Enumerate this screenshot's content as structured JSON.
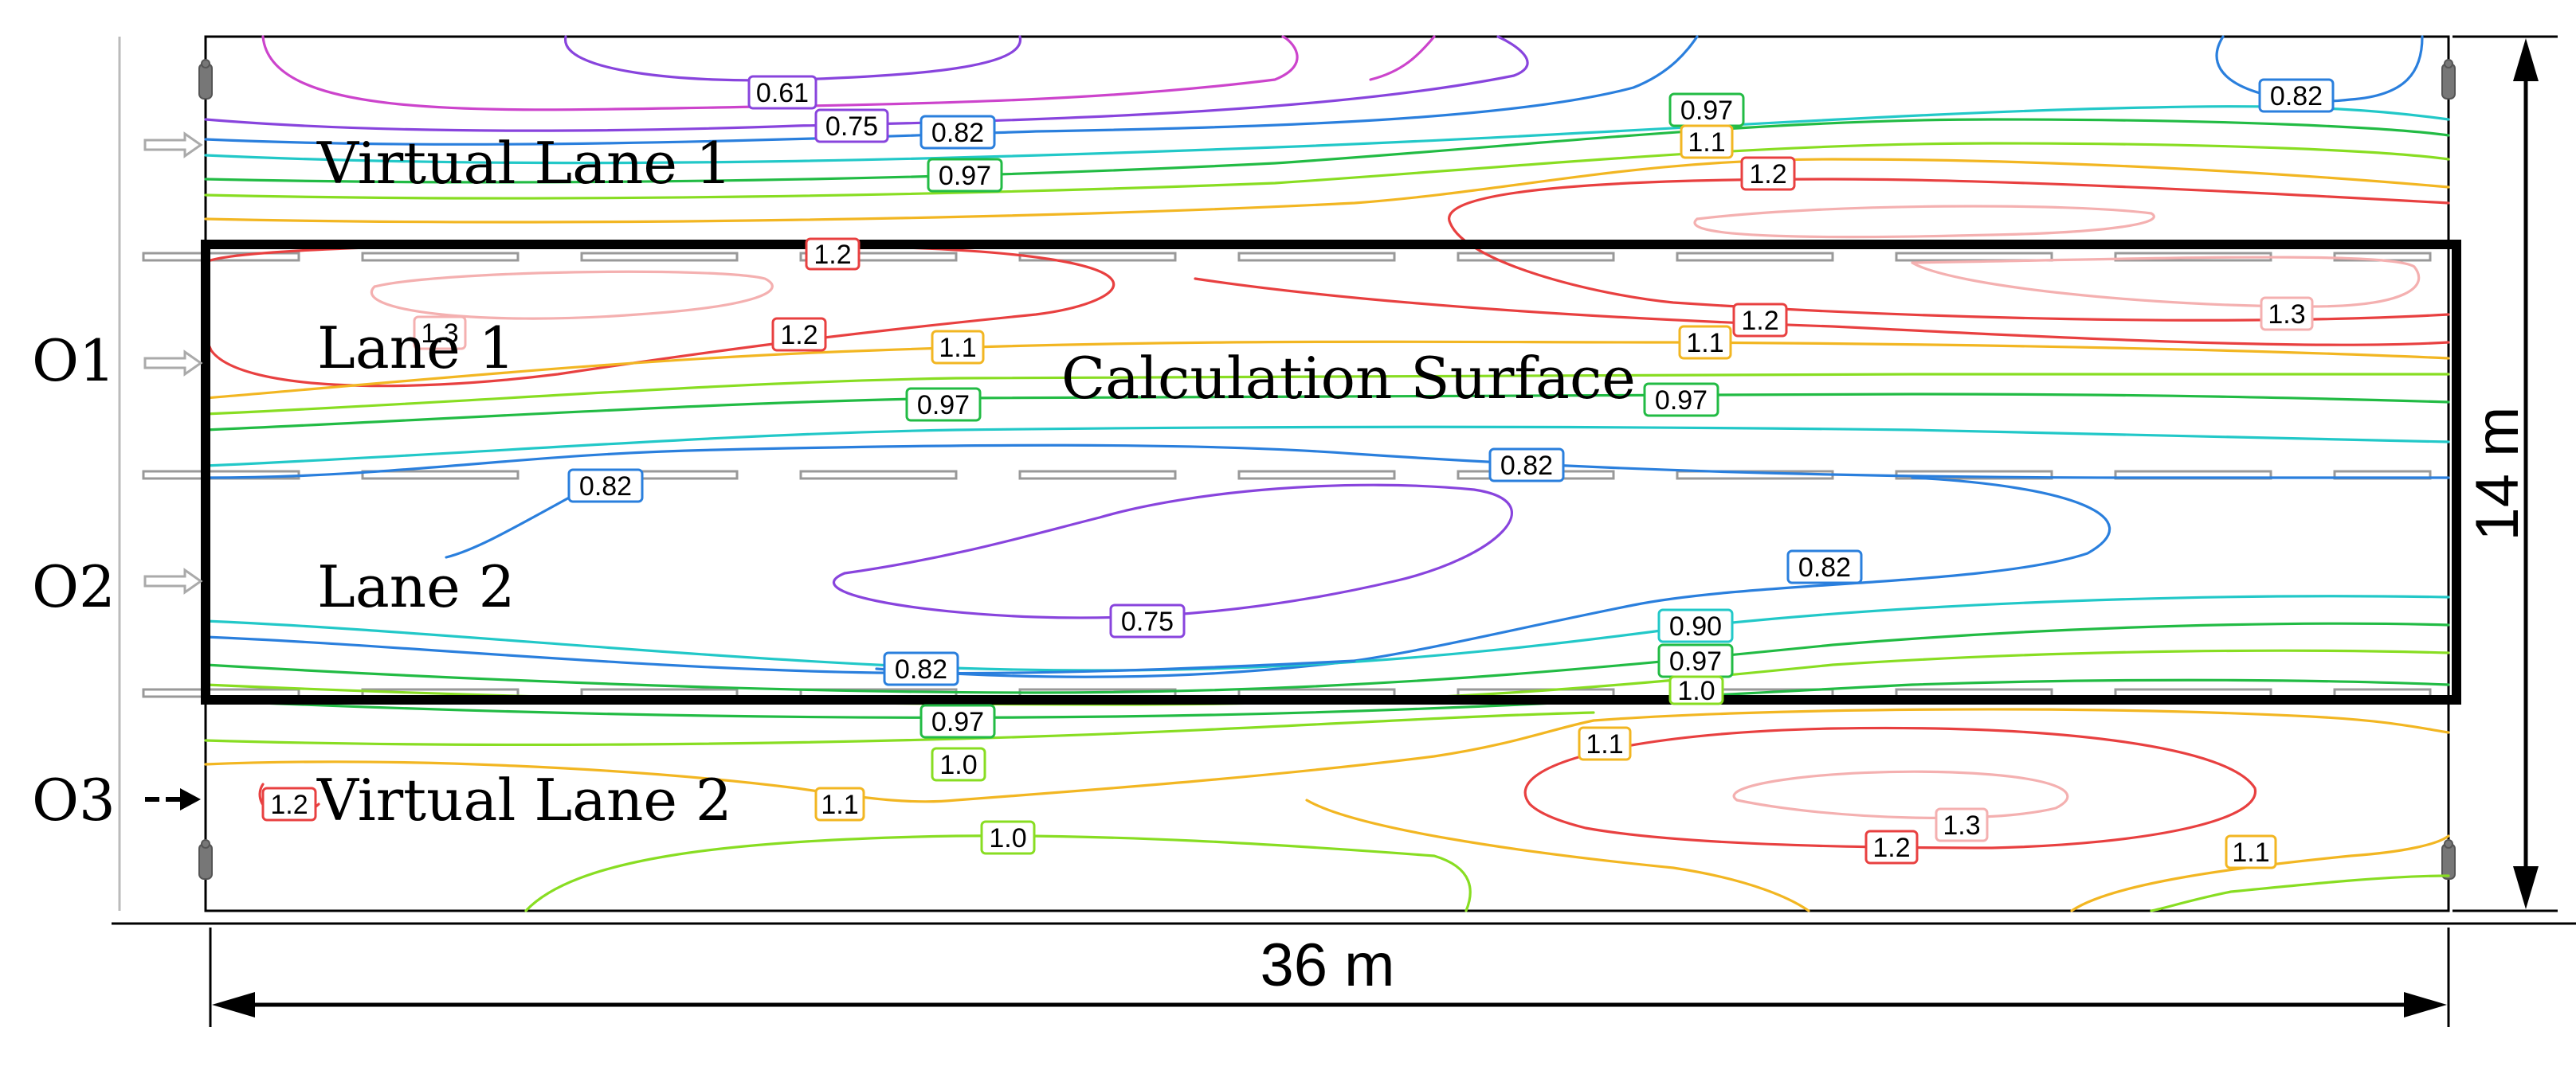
{
  "lanes": {
    "virtual_lane_1": "Virtual Lane 1",
    "lane_1": "Lane 1",
    "lane_2": "Lane 2",
    "virtual_lane_2": "Virtual Lane 2"
  },
  "calculation_surface_label": "Calculation Surface",
  "observers": {
    "o1": "O1",
    "o2": "O2",
    "o3": "O3"
  },
  "dimensions": {
    "width": "36 m",
    "height": "14 m"
  },
  "contour_labels": [
    "0.61",
    "0.75",
    "0.82",
    "0.97",
    "0.82",
    "0.97",
    "1.1",
    "1.2",
    "1.2",
    "1.3",
    "1.2",
    "1.1",
    "1.2",
    "1.1",
    "1.3",
    "0.97",
    "0.97",
    "0.82",
    "0.82",
    "0.82",
    "0.75",
    "0.90",
    "0.82",
    "0.97",
    "1.0",
    "0.97",
    "1.0",
    "1.2",
    "1.1",
    "1.1",
    "1.3",
    "1.2",
    "1.0",
    "1.1"
  ],
  "colors": {
    "c061": "#cc44cc",
    "c075": "#8844dd",
    "c082": "#2a7fdd",
    "c090": "#22c8c8",
    "c097": "#22bb44",
    "c100": "#88dd22",
    "c110": "#f2b622",
    "c120": "#e84040",
    "c130": "#f4b0b0",
    "calc_frame": "#000000"
  }
}
